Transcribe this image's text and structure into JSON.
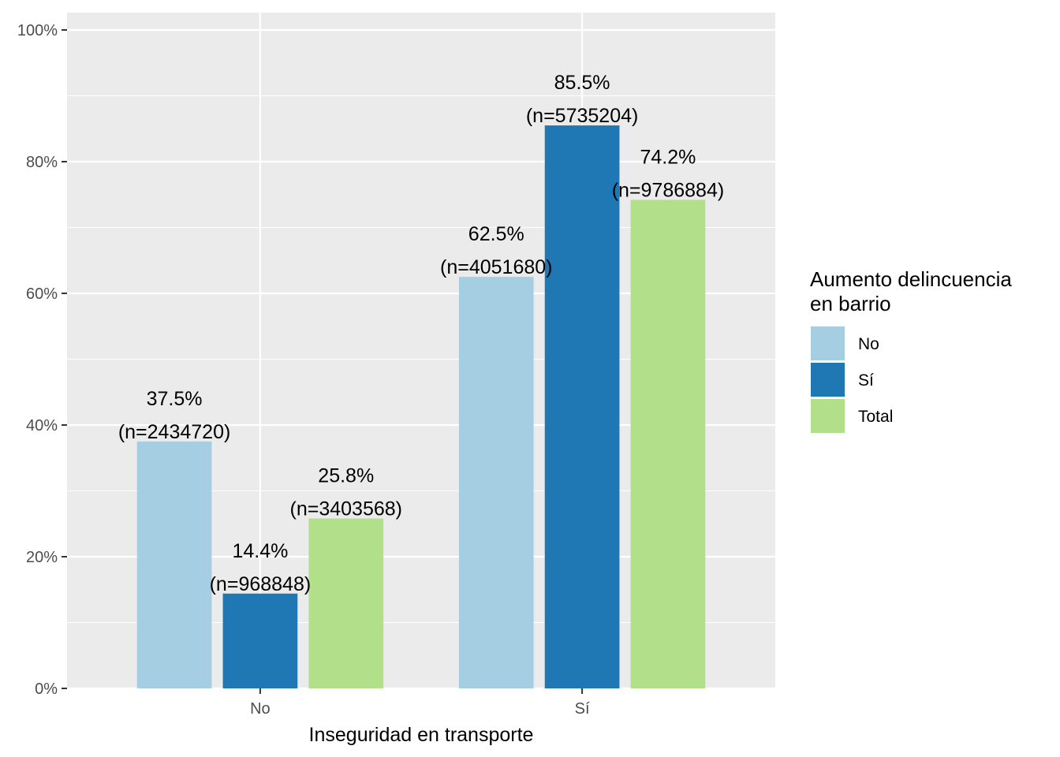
{
  "chart_data": {
    "type": "bar",
    "xlabel": "Inseguridad en transporte",
    "ylabel": "",
    "categories": [
      "No",
      "Sí"
    ],
    "ylim": [
      0,
      1
    ],
    "y_ticks": [
      "0%",
      "20%",
      "40%",
      "60%",
      "80%",
      "100%"
    ],
    "grid": true,
    "legend": {
      "title_line1": "Aumento delincuencia",
      "title_line2": "en barrio",
      "placement": "right"
    },
    "series": [
      {
        "name": "No",
        "color": "#A6CEE3",
        "values": [
          0.375,
          0.625
        ],
        "labels": [
          [
            "37.5%",
            "(n=2434720)"
          ],
          [
            "62.5%",
            "(n=4051680)"
          ]
        ]
      },
      {
        "name": "Sí",
        "color": "#1F78B4",
        "values": [
          0.144,
          0.855
        ],
        "labels": [
          [
            "14.4%",
            "(n=968848)"
          ],
          [
            "85.5%",
            "(n=5735204)"
          ]
        ]
      },
      {
        "name": "Total",
        "color": "#B2DF8A",
        "values": [
          0.258,
          0.742
        ],
        "labels": [
          [
            "25.8%",
            "(n=3403568)"
          ],
          [
            "74.2%",
            "(n=9786884)"
          ]
        ]
      }
    ]
  },
  "colors": {
    "panel_background": "#EBEBEB",
    "grid_major": "#FFFFFF",
    "tick_text": "#4D4D4D"
  }
}
